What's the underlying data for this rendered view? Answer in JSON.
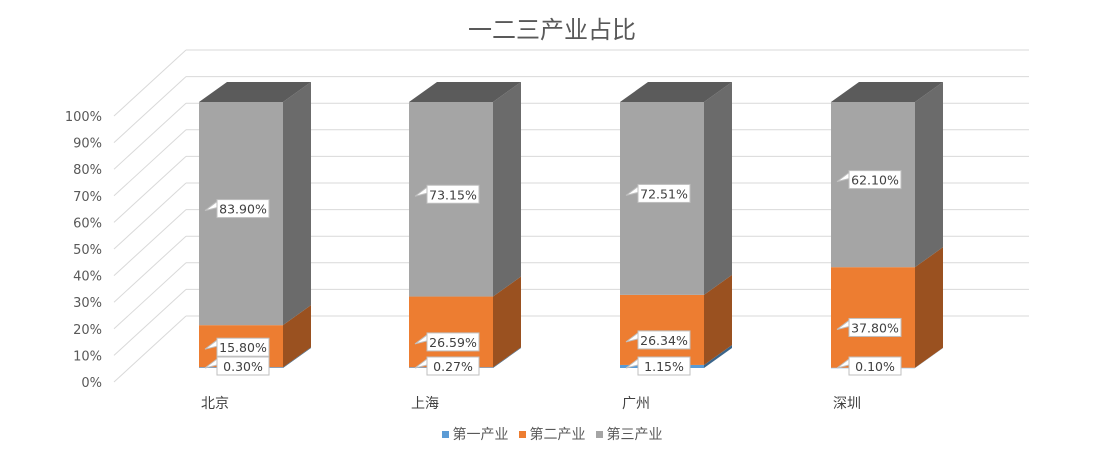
{
  "chart_data": {
    "type": "bar",
    "stacked": true,
    "three_d": true,
    "title": "一二三产业占比",
    "categories": [
      "北京",
      "上海",
      "广州",
      "深圳"
    ],
    "y_ticks": [
      "0%",
      "10%",
      "20%",
      "30%",
      "40%",
      "50%",
      "60%",
      "70%",
      "80%",
      "90%",
      "100%"
    ],
    "ylim": [
      0,
      100
    ],
    "grid": true,
    "legend_position": "bottom",
    "series": [
      {
        "name": "第一产业",
        "color": "#5b9bd5",
        "values": [
          0.3,
          0.27,
          1.15,
          0.1
        ],
        "labels": [
          "0.30%",
          "0.27%",
          "1.15%",
          "0.10%"
        ]
      },
      {
        "name": "第二产业",
        "color": "#ed7d31",
        "values": [
          15.8,
          26.59,
          26.34,
          37.8
        ],
        "labels": [
          "15.80%",
          "26.59%",
          "26.34%",
          "37.80%"
        ]
      },
      {
        "name": "第三产业",
        "color": "#a5a5a5",
        "values": [
          83.9,
          73.15,
          72.51,
          62.1
        ],
        "labels": [
          "83.90%",
          "73.15%",
          "72.51%",
          "62.10%"
        ]
      }
    ]
  }
}
